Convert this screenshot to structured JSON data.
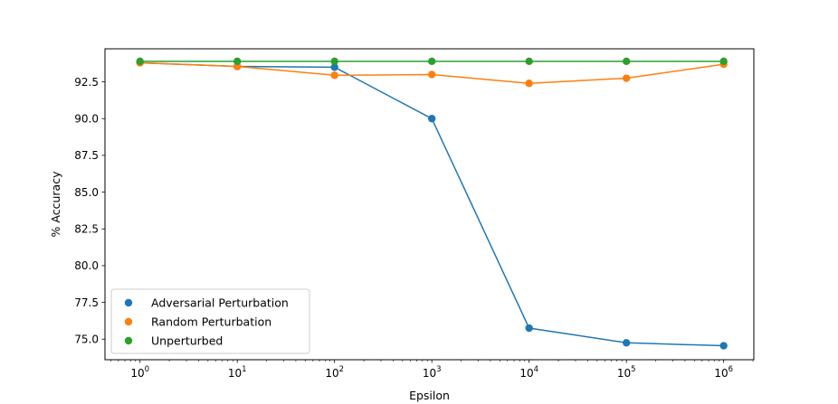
{
  "chart_data": {
    "type": "line",
    "title": "",
    "xlabel": "Epsilon",
    "ylabel": "% Accuracy",
    "xscale": "log",
    "x": [
      1,
      10,
      100,
      1000,
      10000,
      100000,
      1000000
    ],
    "x_tick_labels": [
      {
        "base": "10",
        "exp": "0"
      },
      {
        "base": "10",
        "exp": "1"
      },
      {
        "base": "10",
        "exp": "2"
      },
      {
        "base": "10",
        "exp": "3"
      },
      {
        "base": "10",
        "exp": "4"
      },
      {
        "base": "10",
        "exp": "5"
      },
      {
        "base": "10",
        "exp": "6"
      }
    ],
    "y_ticks": [
      "75.0",
      "77.5",
      "80.0",
      "82.5",
      "85.0",
      "87.5",
      "90.0",
      "92.5"
    ],
    "ylim": [
      73.6,
      94.75
    ],
    "xlim_log10": [
      -0.36,
      6.31
    ],
    "grid": false,
    "legend_position": "lower-left",
    "series": [
      {
        "name": "Adversarial Perturbation",
        "color": "#1f77b4",
        "values": [
          93.8,
          93.55,
          93.5,
          90.0,
          75.75,
          74.75,
          74.55
        ]
      },
      {
        "name": "Random Perturbation",
        "color": "#ff7f0e",
        "values": [
          93.8,
          93.55,
          92.95,
          93.0,
          92.4,
          92.75,
          93.7
        ]
      },
      {
        "name": "Unperturbed",
        "color": "#2ca02c",
        "values": [
          93.9,
          93.9,
          93.9,
          93.9,
          93.9,
          93.9,
          93.9
        ]
      }
    ]
  }
}
